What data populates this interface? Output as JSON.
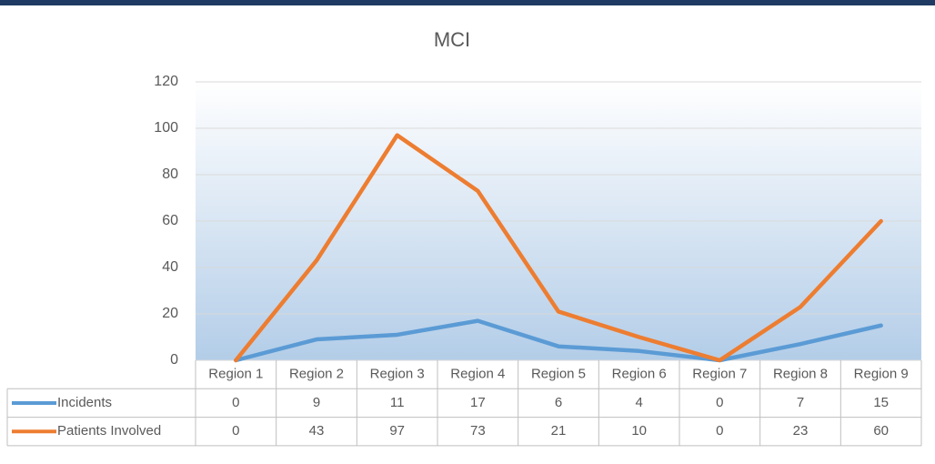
{
  "chart_data": {
    "type": "line",
    "title": "MCI",
    "categories": [
      "Region 1",
      "Region 2",
      "Region 3",
      "Region 4",
      "Region 5",
      "Region 6",
      "Region 7",
      "Region 8",
      "Region 9"
    ],
    "series": [
      {
        "name": "Incidents",
        "color": "#5b9bd5",
        "values": [
          0,
          9,
          11,
          17,
          6,
          4,
          0,
          7,
          15
        ]
      },
      {
        "name": "Patients Involved",
        "color": "#ed7d31",
        "values": [
          0,
          43,
          97,
          73,
          21,
          10,
          0,
          23,
          60
        ]
      }
    ],
    "ylim": [
      0,
      120
    ],
    "yticks": [
      0,
      20,
      40,
      60,
      80,
      100,
      120
    ],
    "grid": true
  }
}
